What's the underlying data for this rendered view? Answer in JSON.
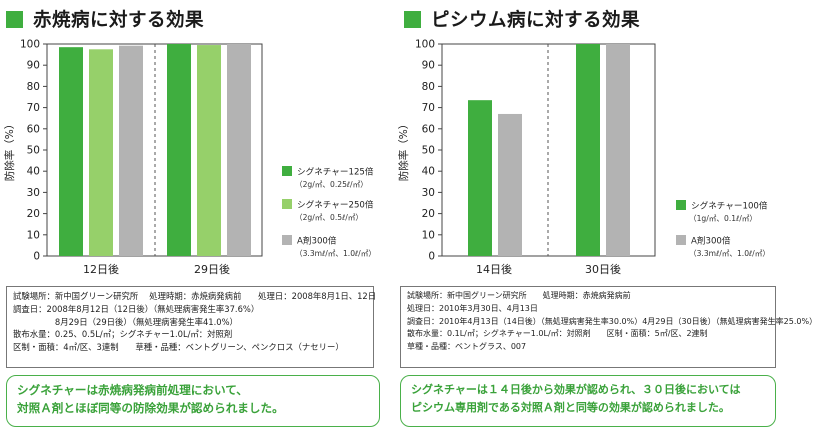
{
  "colors": {
    "accent": "#3fae3f",
    "series_light": "#96d06a",
    "series_gray": "#b3b3b3",
    "frame_green": "#4ab04a"
  },
  "left": {
    "title": "赤焼病に対する効果",
    "info": [
      "試験場所：新中国グリーン研究所　 処理時期：赤焼病発病前　　処理日：2008年8月1日、12日",
      "調査日：2008年8月12日（12日後）（無処理病害発生率37.6%）",
      "　　　　　8月29日（29日後）（無処理病害発生率41.0%）",
      "散布水量：0.25、0.5L/㎡；シグネチャー1.0L/㎡：対照剤",
      "区制・面積：4㎡/区、3連制　　草種・品種：ベントグリーン、ペンクロス（ナセリー）"
    ],
    "conclusion": [
      "シグネチャーは赤焼病発病前処理において、",
      "対照Ａ剤とほぼ同等の防除効果が認められました。"
    ]
  },
  "right": {
    "title": "ピシウム病に対する効果",
    "info": [
      "試験場所：新中国グリーン研究所　　処理時期：赤焼病発病前",
      "処理日：2010年3月30日、4月13日",
      "調査日：2010年4月13日（14日後）（無処理病害発生率30.0%）4月29日（30日後）（無処理病害発生率25.0%）",
      "散布水量：0.1L/㎡；シグネチャー1.0L/㎡：対照剤　　区制・面積：5㎡/区、2連制",
      "草種・品種：ベントグラス、007"
    ],
    "conclusion": [
      "シグネチャーは１４日後から効果が認められ、３０日後においては",
      "ピシウム専用剤である対照Ａ剤と同等の効果が認められました。"
    ]
  },
  "chart_data": [
    {
      "type": "bar",
      "title": "赤焼病に対する効果",
      "ylabel": "防除率（%）",
      "xlabel": "",
      "ylim": [
        0,
        100
      ],
      "yticks": [
        0,
        10,
        20,
        30,
        40,
        50,
        60,
        70,
        80,
        90,
        100
      ],
      "grid": false,
      "legend_position": "right",
      "categories": [
        "12日後",
        "29日後"
      ],
      "series": [
        {
          "name": "シグネチャー125倍",
          "detail": "（2g/㎡、0.25ℓ/㎡）",
          "color": "#3fae3f",
          "values": [
            98.5,
            100
          ]
        },
        {
          "name": "シグネチャー250倍",
          "detail": "（2g/㎡、0.5ℓ/㎡）",
          "color": "#96d06a",
          "values": [
            97.5,
            99.5
          ]
        },
        {
          "name": "A剤300倍",
          "detail": "（3.3mℓ/㎡、1.0ℓ/㎡）",
          "color": "#b3b3b3",
          "values": [
            99.2,
            100
          ]
        }
      ]
    },
    {
      "type": "bar",
      "title": "ピシウム病に対する効果",
      "ylabel": "防除率（%）",
      "xlabel": "",
      "ylim": [
        0,
        100
      ],
      "yticks": [
        0,
        10,
        20,
        30,
        40,
        50,
        60,
        70,
        80,
        90,
        100
      ],
      "grid": false,
      "legend_position": "right",
      "categories": [
        "14日後",
        "30日後"
      ],
      "series": [
        {
          "name": "シグネチャー100倍",
          "detail": "（1g/㎡、0.1ℓ/㎡）",
          "color": "#3fae3f",
          "values": [
            73.5,
            100
          ]
        },
        {
          "name": "A剤300倍",
          "detail": "（3.3mℓ/㎡、1.0ℓ/㎡）",
          "color": "#b3b3b3",
          "values": [
            67,
            100
          ]
        }
      ]
    }
  ]
}
